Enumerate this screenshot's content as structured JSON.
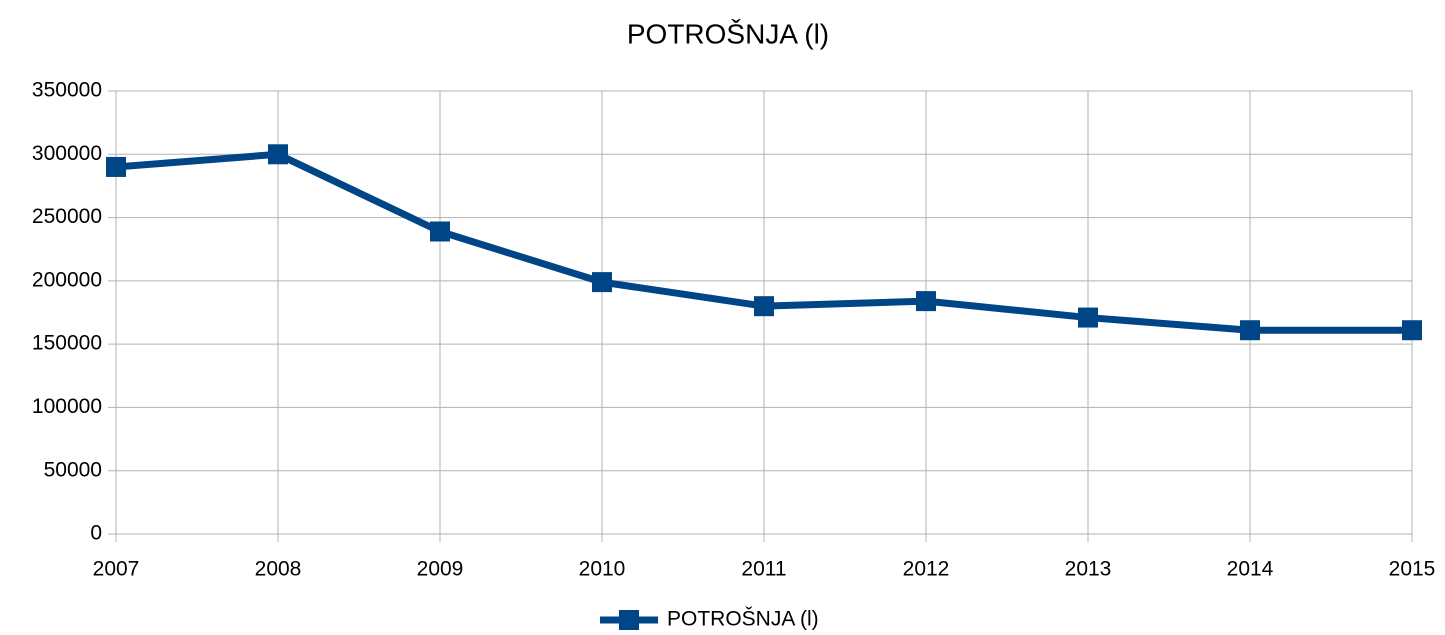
{
  "chart_data": {
    "type": "line",
    "title": "POTROŠNJA (l)",
    "x": [
      2007,
      2008,
      2009,
      2010,
      2011,
      2012,
      2013,
      2014,
      2015
    ],
    "series": [
      {
        "name": "POTROŠNJA (l)",
        "color": "#004586",
        "values": [
          290000,
          300000,
          239000,
          199000,
          180000,
          184000,
          171000,
          161000,
          161000
        ]
      }
    ],
    "xlim": [
      2007,
      2015
    ],
    "xticks": [
      2007,
      2008,
      2009,
      2010,
      2011,
      2012,
      2013,
      2014,
      2015
    ],
    "ylim": [
      0,
      350000
    ],
    "yticks": [
      0,
      50000,
      100000,
      150000,
      200000,
      250000,
      300000,
      350000
    ],
    "grid": true,
    "legend": "bottom"
  }
}
